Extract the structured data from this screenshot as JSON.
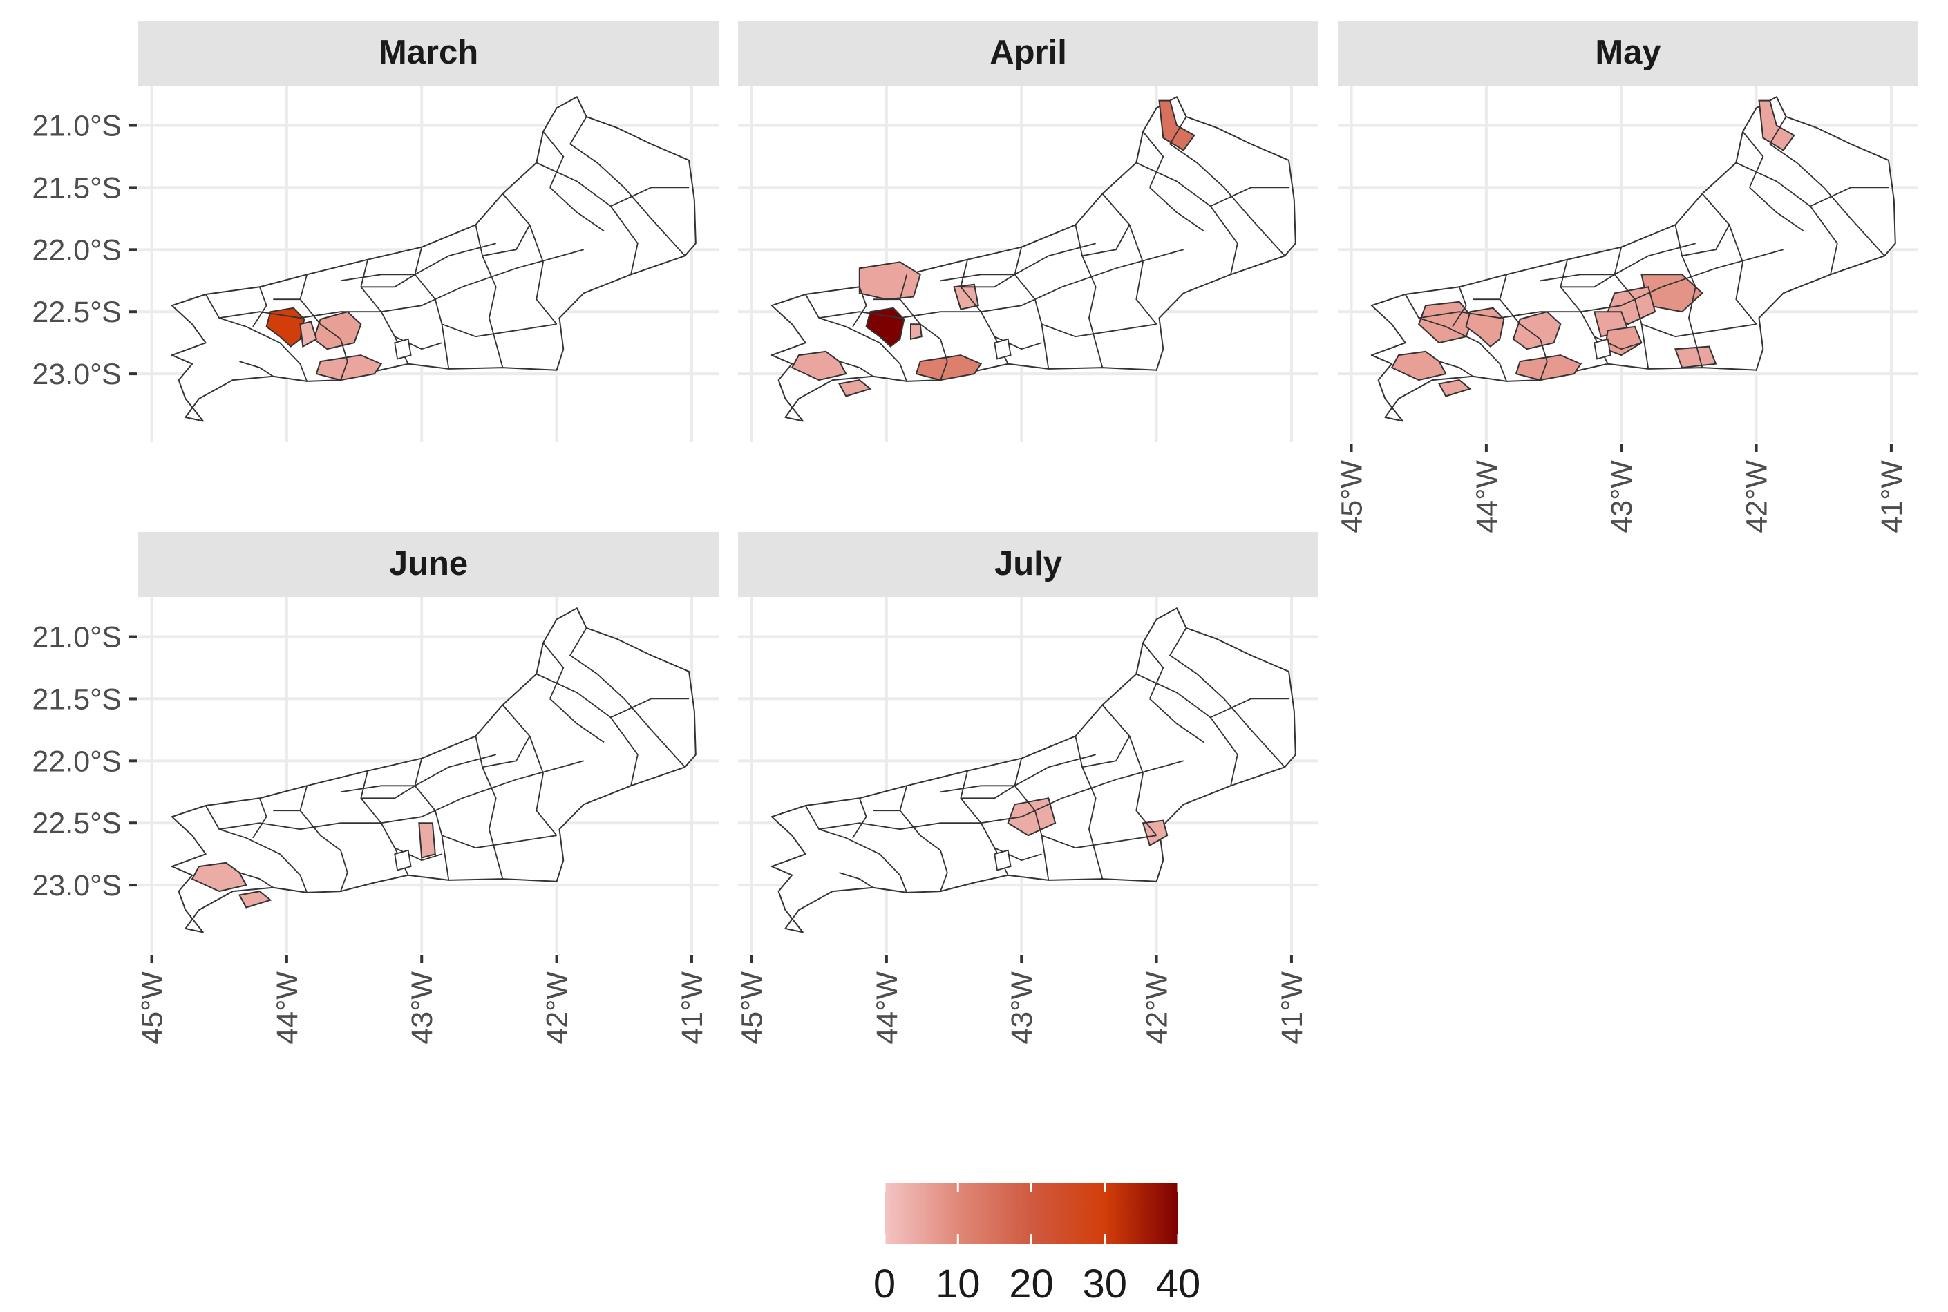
{
  "panels": [
    {
      "title": "March",
      "region_fills": [
        {
          "region": "metro-west",
          "value": 30
        },
        {
          "region": "metro-core",
          "value": 6
        },
        {
          "region": "metro-core-b",
          "value": 3
        },
        {
          "region": "coast-south",
          "value": 5
        }
      ]
    },
    {
      "title": "April",
      "region_fills": [
        {
          "region": "north-tip",
          "value": 15
        },
        {
          "region": "metro-west",
          "value": 40
        },
        {
          "region": "valley-north",
          "value": 5
        },
        {
          "region": "center-small",
          "value": 4
        },
        {
          "region": "coast-south",
          "value": 12
        },
        {
          "region": "southwest-coast",
          "value": 5
        },
        {
          "region": "ilha-grande",
          "value": 5
        },
        {
          "region": "metro-west-b",
          "value": 4
        }
      ]
    },
    {
      "title": "May",
      "region_fills": [
        {
          "region": "north-tip",
          "value": 5
        },
        {
          "region": "valley-west",
          "value": 6
        },
        {
          "region": "metro-west",
          "value": 6
        },
        {
          "region": "metro-core",
          "value": 5
        },
        {
          "region": "coast-south",
          "value": 7
        },
        {
          "region": "southwest-coast",
          "value": 6
        },
        {
          "region": "ilha-grande",
          "value": 5
        },
        {
          "region": "center-east",
          "value": 8
        },
        {
          "region": "center-a",
          "value": 5
        },
        {
          "region": "center-b",
          "value": 5
        },
        {
          "region": "lakes-coast",
          "value": 5
        },
        {
          "region": "center-c",
          "value": 6
        }
      ]
    },
    {
      "title": "June",
      "region_fills": [
        {
          "region": "center-narrow",
          "value": 4
        },
        {
          "region": "southwest-coast",
          "value": 4
        },
        {
          "region": "ilha-grande",
          "value": 4
        }
      ]
    },
    {
      "title": "July",
      "region_fills": [
        {
          "region": "center-a",
          "value": 4
        },
        {
          "region": "lakes-small",
          "value": 4
        }
      ]
    }
  ],
  "axes": {
    "y_ticks": [
      {
        "value": -21.0,
        "label": "21.0°S"
      },
      {
        "value": -21.5,
        "label": "21.5°S"
      },
      {
        "value": -22.0,
        "label": "22.0°S"
      },
      {
        "value": -22.5,
        "label": "22.5°S"
      },
      {
        "value": -23.0,
        "label": "23.0°S"
      }
    ],
    "x_ticks": [
      {
        "value": -45,
        "label": "45°W"
      },
      {
        "value": -44,
        "label": "44°W"
      },
      {
        "value": -43,
        "label": "43°W"
      },
      {
        "value": -42,
        "label": "42°W"
      },
      {
        "value": -41,
        "label": "41°W"
      }
    ]
  },
  "legend": {
    "labels": [
      "0",
      "10",
      "20",
      "30",
      "40"
    ],
    "scale_min": 0,
    "scale_max": 40,
    "color_low": "#f4c4c4",
    "color_high": "#7d0000"
  },
  "colors": {
    "strip_bg": "#e3e3e3",
    "panel_bg": "#ffffff",
    "grid": "#ebebeb",
    "border": "#333333",
    "empty_fill": "#ffffff"
  }
}
